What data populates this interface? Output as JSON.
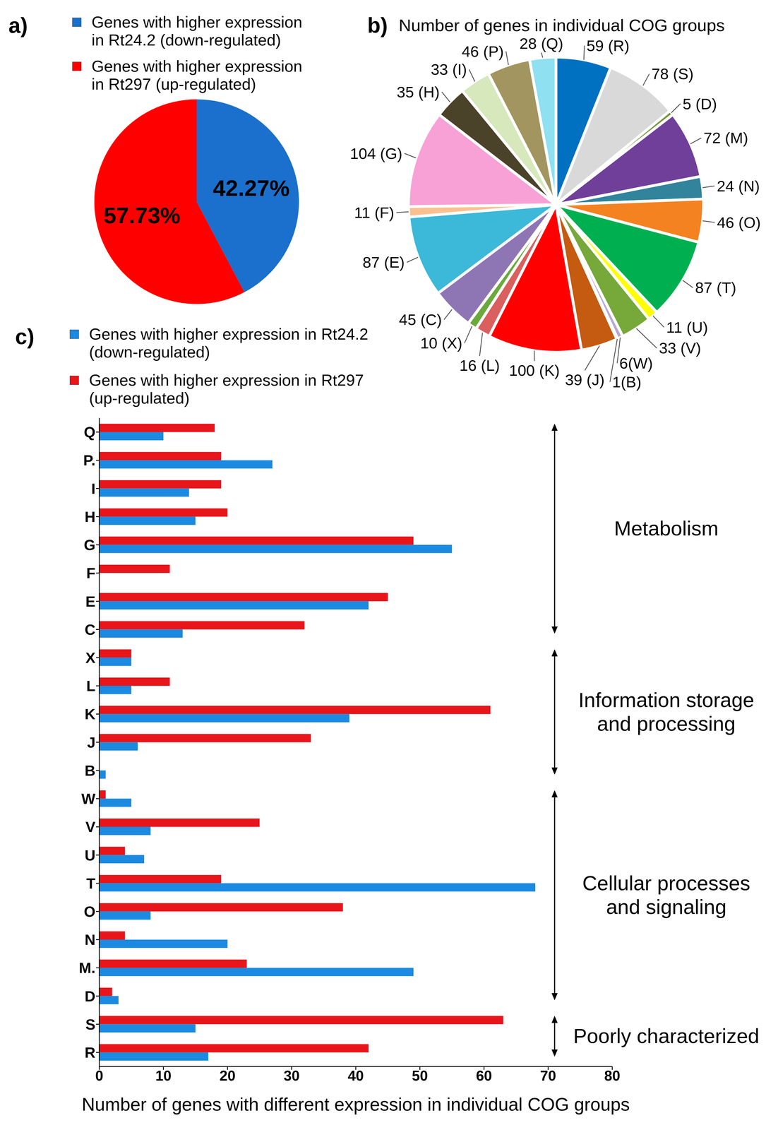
{
  "chart_data": [
    {
      "type": "pie",
      "panel_label": "a)",
      "categories": [
        "Genes with higher expression in Rt24.2 (down-regulated)",
        "Genes with higher expression in Rt297 (up-regulated)"
      ],
      "values": [
        42.27,
        57.73
      ],
      "value_labels": [
        "42.27%",
        "57.73%"
      ],
      "colors": [
        "#1a70cc",
        "#ff0000"
      ],
      "legend": "top",
      "data_labels": true
    },
    {
      "type": "pie",
      "panel_label": "b)",
      "title": "Number of genes in individual COG groups",
      "categories": [
        "R",
        "S",
        "D",
        "M",
        "N",
        "O",
        "T",
        "U",
        "V",
        "W",
        "B",
        "J",
        "K",
        "L",
        "X",
        "C",
        "E",
        "F",
        "G",
        "H",
        "I",
        "P",
        "Q"
      ],
      "values": [
        59,
        78,
        5,
        72,
        24,
        46,
        87,
        11,
        33,
        6,
        1,
        39,
        100,
        16,
        10,
        45,
        87,
        11,
        104,
        35,
        33,
        46,
        28
      ],
      "value_labels": [
        "59 (R)",
        "78 (S)",
        "5 (D)",
        "72 (M)",
        "24 (N)",
        "46 (O)",
        "87 (T)",
        "11 (U)",
        "33 (V)",
        "6(W)",
        "1(B)",
        "39 (J)",
        "100 (K)",
        "16 (L)",
        "10 (X)",
        "45 (C)",
        "87 (E)",
        "11 (F)",
        "104 (G)",
        "35 (H)",
        "33 (I)",
        "46 (P)",
        "28 (Q)"
      ],
      "colors": [
        "#0070c0",
        "#d9d9d9",
        "#77933c",
        "#6f3f9a",
        "#31849b",
        "#f58220",
        "#00b050",
        "#ffff00",
        "#76a83a",
        "#b7a7d4",
        "#c7b8e0",
        "#c55a11",
        "#ff0000",
        "#d9605e",
        "#6aaa3c",
        "#8e76b5",
        "#3cb8d8",
        "#fac090",
        "#f7a1d7",
        "#4a4229",
        "#d6e8bc",
        "#a39560",
        "#8fe0f0"
      ],
      "data_labels": true
    },
    {
      "type": "bar",
      "panel_label": "c)",
      "orientation": "horizontal",
      "categories": [
        "Q",
        "P.",
        "I",
        "H",
        "G",
        "F",
        "E",
        "C",
        "X",
        "L",
        "K",
        "J",
        "B",
        "W",
        "V",
        "U",
        "T",
        "O",
        "N",
        "M.",
        "D",
        "S",
        "R"
      ],
      "series": [
        {
          "name": "Genes with higher expression in Rt24.2 (down-regulated)",
          "color": "#1b8ae0",
          "values": [
            10,
            27,
            14,
            15,
            55,
            0,
            42,
            13,
            5,
            5,
            39,
            6,
            1,
            5,
            8,
            7,
            68,
            8,
            20,
            49,
            3,
            15,
            17
          ]
        },
        {
          "name": "Genes with higher expression in Rt297 (up-regulated)",
          "color": "#e8151b",
          "values": [
            18,
            19,
            19,
            20,
            49,
            11,
            45,
            32,
            5,
            11,
            61,
            33,
            0,
            1,
            25,
            4,
            19,
            38,
            4,
            23,
            2,
            63,
            42
          ]
        }
      ],
      "xlabel": "Number of genes with different expression in individual COG groups",
      "xlim": [
        0,
        80
      ],
      "xticks": [
        0,
        10,
        20,
        30,
        40,
        50,
        60,
        70,
        80
      ],
      "legend": "top",
      "grid": false,
      "annotations": [
        {
          "text": "Metabolism",
          "from": "Q",
          "to": "C"
        },
        {
          "text": "Information storage and processing",
          "from": "X",
          "to": "B"
        },
        {
          "text": "Cellular processes and signaling",
          "from": "W",
          "to": "D"
        },
        {
          "text": "Poorly characterized",
          "from": "S",
          "to": "R"
        }
      ]
    }
  ]
}
